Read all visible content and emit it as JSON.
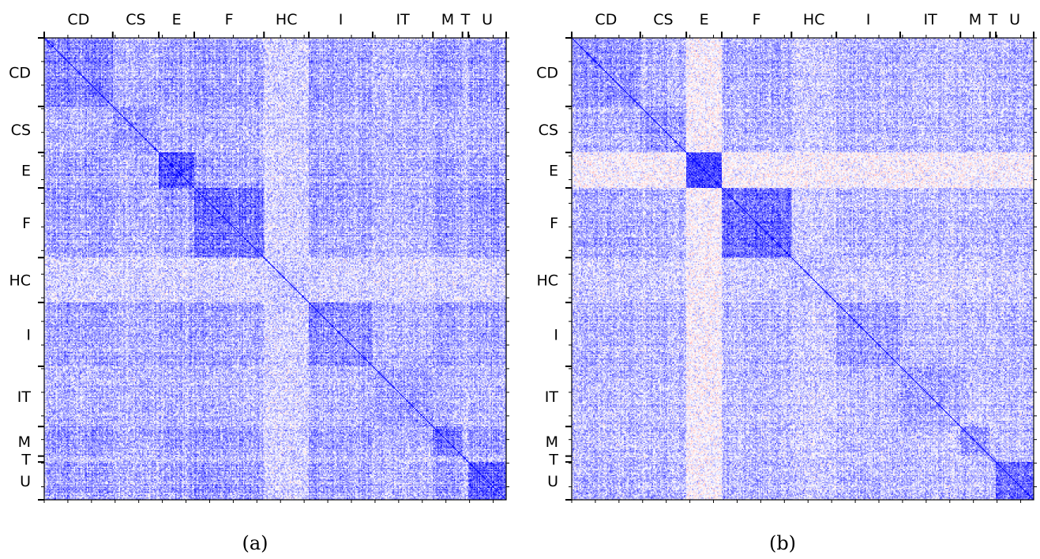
{
  "chart_data": [
    {
      "type": "heatmap",
      "caption": "(a)",
      "sector_labels": [
        "CD",
        "CS",
        "E",
        "F",
        "HC",
        "I",
        "IT",
        "M",
        "T",
        "U"
      ],
      "sector_sizes": [
        58,
        39,
        30,
        59,
        38,
        54,
        51,
        25,
        5,
        32
      ],
      "color_scale": {
        "low": "#ff6a6a",
        "mid": "#ffffff",
        "high": "#0000ff"
      },
      "diagonal_value": 1.0,
      "sector_strength": [
        0.6,
        0.45,
        0.55,
        0.7,
        0.25,
        0.55,
        0.45,
        0.6,
        0.4,
        0.65
      ],
      "in_sector_boost": [
        0.1,
        0.1,
        0.35,
        0.15,
        0.05,
        0.1,
        0.1,
        0.15,
        0.1,
        0.25
      ]
    },
    {
      "type": "heatmap",
      "caption": "(b)",
      "sector_labels": [
        "CD",
        "CS",
        "E",
        "F",
        "HC",
        "I",
        "IT",
        "M",
        "T",
        "U"
      ],
      "sector_sizes": [
        58,
        39,
        30,
        59,
        38,
        54,
        51,
        25,
        5,
        32
      ],
      "color_scale": {
        "low": "#ff6a6a",
        "mid": "#ffffff",
        "high": "#0000ff"
      },
      "diagonal_value": 1.0,
      "sector_strength": [
        0.5,
        0.45,
        -0.05,
        0.55,
        0.3,
        0.45,
        0.4,
        0.45,
        0.35,
        0.45
      ],
      "in_sector_boost": [
        0.1,
        0.1,
        0.75,
        0.25,
        0.05,
        0.1,
        0.1,
        0.15,
        0.1,
        0.3
      ]
    }
  ]
}
